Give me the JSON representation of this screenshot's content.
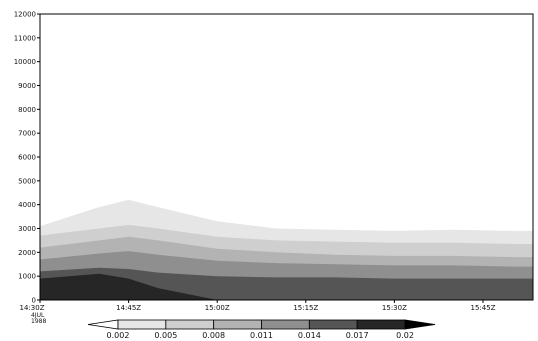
{
  "chart_data": {
    "type": "heatmap",
    "title": "",
    "xlabel": "",
    "ylabel": "",
    "ylim": [
      0,
      12000
    ],
    "y_ticks": [
      0,
      1000,
      2000,
      3000,
      4000,
      5000,
      6000,
      7000,
      8000,
      9000,
      10000,
      11000,
      12000
    ],
    "y_tick_labels": [
      "0",
      "1000",
      "2000",
      "3000",
      "4000",
      "5000",
      "6000",
      "7000",
      "8000",
      "9000",
      "10000",
      "11000",
      "12000"
    ],
    "x_tick_labels": [
      "14:30Z",
      "14:45Z",
      "15:00Z",
      "15:15Z",
      "15:30Z",
      "15:45Z"
    ],
    "x_date_label": [
      "4JUL",
      "1988"
    ],
    "colorbar": {
      "levels": [
        "0.002",
        "0.005",
        "0.008",
        "0.011",
        "0.014",
        "0.017",
        "0.02"
      ],
      "colors": [
        "#ffffff",
        "#e6e6e6",
        "#cfcfcf",
        "#b3b3b3",
        "#8f8f8f",
        "#555555",
        "#262626",
        "#000000"
      ]
    },
    "contour_boundaries": [
      {
        "level": "0.002",
        "x": [
          "14:30Z",
          "14:40Z",
          "14:45Z",
          "14:50Z",
          "15:00Z",
          "15:10Z",
          "15:20Z",
          "15:30Z",
          "15:40Z",
          "15:50Z"
        ],
        "y": [
          3100,
          3900,
          4200,
          3900,
          3300,
          3000,
          2950,
          2900,
          2950,
          2900
        ]
      },
      {
        "level": "0.005",
        "x": [
          "14:30Z",
          "14:40Z",
          "14:45Z",
          "14:50Z",
          "15:00Z",
          "15:10Z",
          "15:20Z",
          "15:30Z",
          "15:40Z",
          "15:50Z"
        ],
        "y": [
          2700,
          3000,
          3150,
          3000,
          2650,
          2500,
          2450,
          2400,
          2400,
          2350
        ]
      },
      {
        "level": "0.008",
        "x": [
          "14:30Z",
          "14:40Z",
          "14:45Z",
          "14:50Z",
          "15:00Z",
          "15:10Z",
          "15:20Z",
          "15:30Z",
          "15:40Z",
          "15:50Z"
        ],
        "y": [
          2200,
          2500,
          2650,
          2500,
          2150,
          2000,
          1900,
          1850,
          1850,
          1800
        ]
      },
      {
        "level": "0.011",
        "x": [
          "14:30Z",
          "14:40Z",
          "14:45Z",
          "14:50Z",
          "15:00Z",
          "15:10Z",
          "15:20Z",
          "15:30Z",
          "15:40Z",
          "15:50Z"
        ],
        "y": [
          1700,
          1950,
          2050,
          1900,
          1650,
          1550,
          1500,
          1450,
          1450,
          1400
        ]
      },
      {
        "level": "0.014",
        "x": [
          "14:30Z",
          "14:40Z",
          "14:45Z",
          "14:50Z",
          "15:00Z",
          "15:10Z",
          "15:20Z",
          "15:30Z",
          "15:40Z",
          "15:50Z"
        ],
        "y": [
          1200,
          1350,
          1300,
          1150,
          1000,
          950,
          950,
          900,
          900,
          900
        ]
      },
      {
        "level": "0.017",
        "x": [
          "14:30Z",
          "14:40Z",
          "14:45Z",
          "14:50Z",
          "15:00Z",
          "15:10Z",
          "15:20Z",
          "15:30Z",
          "15:40Z",
          "15:50Z"
        ],
        "y": [
          900,
          1100,
          900,
          500,
          0,
          0,
          0,
          0,
          0,
          0
        ]
      }
    ]
  }
}
